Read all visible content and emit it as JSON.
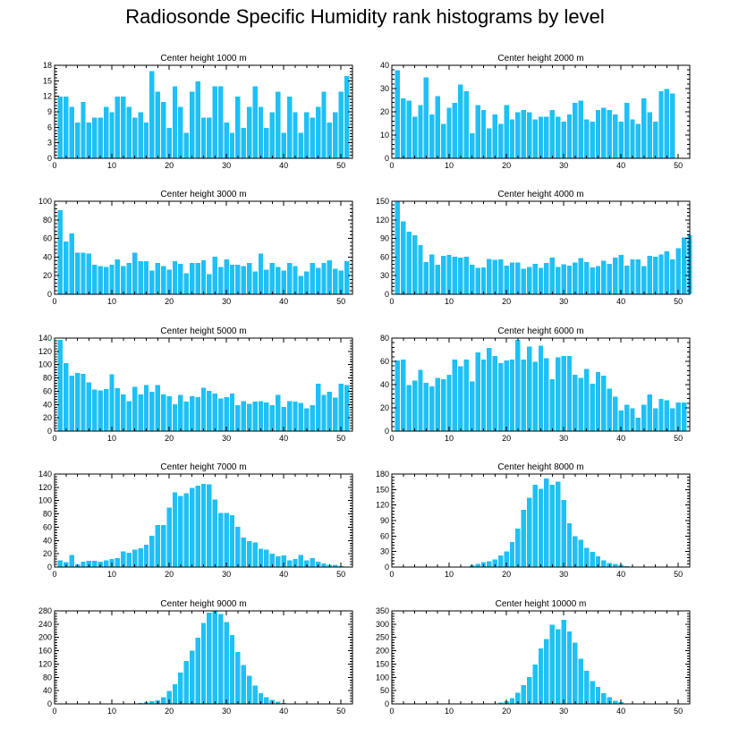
{
  "figure_title": "Radiosonde Specific Humidity rank histograms by level",
  "chart_data": [
    {
      "type": "bar",
      "title": "Center height 1000 m",
      "xlim": [
        0,
        52
      ],
      "xticks": [
        0,
        10,
        20,
        30,
        40,
        50
      ],
      "ylim": [
        0,
        18
      ],
      "yticks": [
        0,
        3,
        6,
        9,
        12,
        15,
        18
      ],
      "values": [
        12,
        12,
        10,
        7,
        11,
        7,
        8,
        8,
        10,
        9,
        12,
        12,
        10,
        8,
        9,
        7,
        17,
        13,
        11,
        6,
        14,
        10,
        5,
        13,
        15,
        8,
        8,
        14,
        14,
        7,
        5,
        12,
        6,
        10,
        14,
        10,
        6,
        9,
        13,
        5,
        12,
        9,
        5,
        9,
        8,
        10,
        13,
        7,
        9,
        13,
        16
      ]
    },
    {
      "type": "bar",
      "title": "Center height 2000 m",
      "xlim": [
        0,
        52
      ],
      "xticks": [
        0,
        10,
        20,
        30,
        40,
        50
      ],
      "ylim": [
        0,
        40
      ],
      "yticks": [
        0,
        10,
        20,
        30,
        40
      ],
      "values": [
        38,
        26,
        25,
        18,
        23,
        35,
        19,
        27,
        15,
        22,
        24,
        32,
        29,
        11,
        23,
        21,
        13,
        19,
        15,
        23,
        17,
        20,
        21,
        20,
        17,
        18,
        18,
        21,
        18,
        16,
        19,
        24,
        25,
        17,
        16,
        21,
        22,
        21,
        19,
        16,
        24,
        17,
        15,
        26,
        20,
        16,
        29,
        30,
        28
      ]
    },
    {
      "type": "bar",
      "title": "Center height 3000 m",
      "xlim": [
        0,
        52
      ],
      "xticks": [
        0,
        10,
        20,
        30,
        40,
        50
      ],
      "ylim": [
        0,
        100
      ],
      "yticks": [
        0,
        20,
        40,
        60,
        80,
        100
      ],
      "values": [
        91,
        57,
        66,
        45,
        45,
        44,
        32,
        31,
        30,
        32,
        38,
        31,
        34,
        45,
        36,
        36,
        26,
        34,
        31,
        27,
        36,
        33,
        23,
        34,
        34,
        37,
        22,
        41,
        30,
        38,
        32,
        32,
        31,
        34,
        25,
        44,
        27,
        34,
        30,
        26,
        34,
        31,
        20,
        25,
        34,
        29,
        34,
        37,
        28,
        26,
        36
      ]
    },
    {
      "type": "bar",
      "title": "Center height 4000 m",
      "xlim": [
        0,
        52
      ],
      "xticks": [
        0,
        10,
        20,
        30,
        40,
        50
      ],
      "ylim": [
        0,
        150
      ],
      "yticks": [
        0,
        30,
        60,
        90,
        120,
        150
      ],
      "values": [
        150,
        118,
        102,
        96,
        80,
        53,
        65,
        48,
        63,
        64,
        61,
        60,
        61,
        48,
        43,
        44,
        58,
        56,
        57,
        47,
        52,
        52,
        42,
        45,
        50,
        43,
        51,
        60,
        45,
        49,
        47,
        52,
        59,
        53,
        44,
        46,
        55,
        50,
        60,
        64,
        47,
        57,
        57,
        46,
        63,
        61,
        65,
        70,
        57,
        75,
        92,
        96
      ]
    },
    {
      "type": "bar",
      "title": "Center height 5000 m",
      "xlim": [
        0,
        52
      ],
      "xticks": [
        0,
        10,
        20,
        30,
        40,
        50
      ],
      "ylim": [
        0,
        140
      ],
      "yticks": [
        0,
        20,
        40,
        60,
        80,
        100,
        120,
        140
      ],
      "values": [
        138,
        103,
        84,
        88,
        87,
        74,
        63,
        62,
        64,
        86,
        65,
        56,
        46,
        67,
        56,
        70,
        60,
        70,
        56,
        53,
        41,
        55,
        45,
        53,
        52,
        66,
        61,
        57,
        50,
        52,
        57,
        40,
        46,
        42,
        45,
        46,
        44,
        40,
        55,
        37,
        46,
        45,
        43,
        35,
        40,
        72,
        55,
        60,
        51,
        72,
        70
      ]
    },
    {
      "type": "bar",
      "title": "Center height 6000 m",
      "xlim": [
        0,
        52
      ],
      "xticks": [
        0,
        10,
        20,
        30,
        40,
        50
      ],
      "ylim": [
        0,
        80
      ],
      "yticks": [
        0,
        20,
        40,
        60,
        80
      ],
      "values": [
        61,
        62,
        40,
        44,
        53,
        42,
        39,
        46,
        45,
        49,
        62,
        56,
        62,
        43,
        68,
        62,
        72,
        65,
        59,
        61,
        62,
        79,
        62,
        73,
        60,
        74,
        63,
        45,
        64,
        65,
        65,
        49,
        46,
        54,
        41,
        51,
        48,
        37,
        30,
        18,
        23,
        20,
        12,
        23,
        32,
        20,
        28,
        27,
        20,
        25,
        25
      ]
    },
    {
      "type": "bar",
      "title": "Center height 7000 m",
      "xlim": [
        0,
        52
      ],
      "xticks": [
        0,
        10,
        20,
        30,
        40,
        50
      ],
      "ylim": [
        0,
        140
      ],
      "yticks": [
        0,
        20,
        40,
        60,
        80,
        100,
        120,
        140
      ],
      "values": [
        11,
        8,
        19,
        5,
        9,
        10,
        10,
        9,
        11,
        13,
        14,
        24,
        22,
        27,
        29,
        34,
        48,
        64,
        64,
        90,
        113,
        108,
        112,
        120,
        123,
        126,
        125,
        102,
        82,
        82,
        79,
        61,
        45,
        40,
        38,
        28,
        27,
        21,
        17,
        18,
        11,
        13,
        19,
        11,
        14,
        9,
        6,
        4,
        4,
        2,
        1
      ]
    },
    {
      "type": "bar",
      "title": "Center height 8000 m",
      "xlim": [
        0,
        52
      ],
      "xticks": [
        0,
        10,
        20,
        30,
        40,
        50
      ],
      "ylim": [
        0,
        180
      ],
      "yticks": [
        0,
        30,
        60,
        90,
        120,
        150,
        180
      ],
      "values": [
        0,
        0,
        0,
        0,
        0,
        0,
        0,
        1,
        0,
        0,
        0,
        0,
        0,
        4,
        7,
        10,
        12,
        16,
        23,
        31,
        49,
        75,
        112,
        135,
        160,
        152,
        172,
        160,
        166,
        131,
        86,
        61,
        54,
        38,
        30,
        22,
        14,
        9,
        7,
        5,
        3,
        2,
        1,
        0,
        0,
        0,
        0,
        0,
        0,
        0,
        0
      ]
    },
    {
      "type": "bar",
      "title": "Center height 9000 m",
      "xlim": [
        0,
        52
      ],
      "xticks": [
        0,
        10,
        20,
        30,
        40,
        50
      ],
      "ylim": [
        0,
        280
      ],
      "yticks": [
        0,
        40,
        80,
        120,
        160,
        200,
        240,
        280
      ],
      "values": [
        0,
        0,
        0,
        0,
        0,
        0,
        0,
        0,
        0,
        0,
        0,
        0,
        0,
        1,
        4,
        7,
        10,
        12,
        21,
        40,
        60,
        95,
        130,
        161,
        200,
        245,
        276,
        280,
        272,
        248,
        209,
        157,
        119,
        86,
        57,
        33,
        22,
        14,
        8,
        4,
        2,
        1,
        1,
        0,
        0,
        0,
        0,
        0,
        0,
        0,
        0
      ]
    },
    {
      "type": "bar",
      "title": "Center height 10000 m",
      "xlim": [
        0,
        52
      ],
      "xticks": [
        0,
        10,
        20,
        30,
        40,
        50
      ],
      "ylim": [
        0,
        350
      ],
      "yticks": [
        0,
        50,
        100,
        150,
        200,
        250,
        300,
        350
      ],
      "values": [
        0,
        0,
        0,
        0,
        0,
        0,
        0,
        0,
        0,
        0,
        0,
        0,
        0,
        0,
        0,
        0,
        1,
        2,
        6,
        11,
        23,
        43,
        72,
        103,
        150,
        210,
        246,
        300,
        283,
        318,
        275,
        233,
        171,
        126,
        87,
        66,
        42,
        27,
        14,
        8,
        4,
        2,
        1,
        0,
        0,
        0,
        0,
        0,
        0,
        0,
        0
      ]
    }
  ]
}
